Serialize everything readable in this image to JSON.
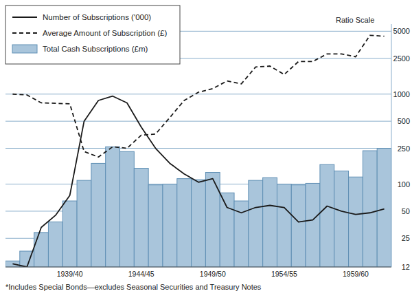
{
  "chart_data": {
    "type": "bar",
    "annotations": [
      "Ratio Scale",
      "*Includes Special Bonds—excludes Seasonal Securities and Treasury Notes"
    ],
    "categories": [
      null,
      null,
      null,
      null,
      "1939/40",
      null,
      null,
      null,
      null,
      "1944/45",
      null,
      null,
      null,
      null,
      "1949/50",
      null,
      null,
      null,
      null,
      "1954/55",
      null,
      null,
      null,
      null,
      "1959/60",
      null,
      null
    ],
    "series": [
      {
        "name": "Number of Subscriptions ('000)",
        "type": "line",
        "line_style": "solid",
        "color": "#1a1a1a",
        "values": [
          13,
          12,
          33,
          45,
          75,
          500,
          850,
          950,
          800,
          430,
          250,
          170,
          130,
          105,
          115,
          55,
          48,
          55,
          58,
          55,
          38,
          40,
          57,
          50,
          46,
          48,
          53
        ]
      },
      {
        "name": "Average Amount of Subscription (£)",
        "type": "line",
        "line_style": "dashed",
        "color": "#1a1a1a",
        "values": [
          1000,
          980,
          800,
          790,
          780,
          230,
          200,
          260,
          250,
          350,
          360,
          550,
          850,
          1050,
          1150,
          1400,
          1300,
          2000,
          2050,
          1650,
          2300,
          2300,
          2800,
          2800,
          2600,
          4500,
          4400
        ]
      },
      {
        "name": "Total Cash Subscriptions (£m)",
        "type": "bar",
        "color": "#a9c5db",
        "values": [
          14,
          18,
          29,
          38,
          65,
          110,
          170,
          260,
          230,
          150,
          98,
          100,
          115,
          112,
          135,
          80,
          65,
          110,
          118,
          100,
          98,
          102,
          165,
          140,
          120,
          235,
          250
        ]
      }
    ],
    "ylim": [
      12,
      6000
    ],
    "yticks": [
      12,
      25,
      50,
      100,
      250,
      500,
      1000,
      2500,
      5000
    ],
    "log": "y",
    "grid": true,
    "legend": "upper left"
  }
}
